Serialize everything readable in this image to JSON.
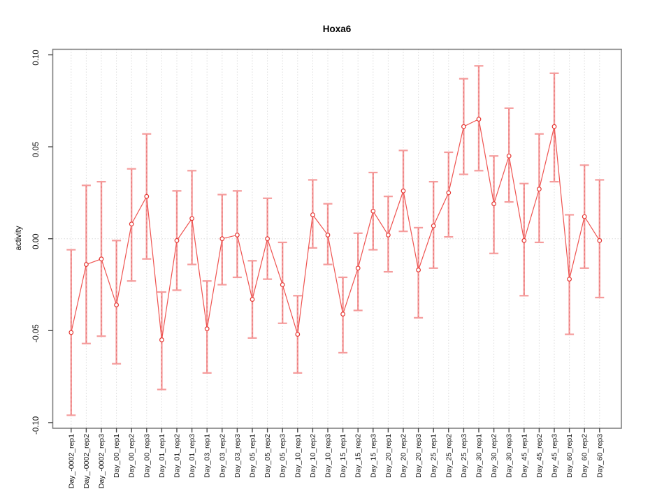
{
  "chart_data": {
    "type": "line",
    "title": "Hoxa6",
    "ylabel": "activity",
    "xlabel": "",
    "ylim": [
      -0.1,
      0.1
    ],
    "yticks": [
      0.1,
      0.05,
      0.0,
      -0.05,
      -0.1
    ],
    "ytick_labels": [
      "0.10",
      "0.05",
      "0.00",
      "-0.05",
      "-0.10"
    ],
    "grid": "vertical dotted line per category, dotted horizontal line at zero",
    "legend_position": "none",
    "marker": "open-circle",
    "categories": [
      "Day_-0002_rep1",
      "Day_-0002_rep2",
      "Day_-0002_rep3",
      "Day_00_rep1",
      "Day_00_rep2",
      "Day_00_rep3",
      "Day_01_rep1",
      "Day_01_rep2",
      "Day_01_rep3",
      "Day_03_rep1",
      "Day_03_rep2",
      "Day_03_rep3",
      "Day_05_rep1",
      "Day_05_rep2",
      "Day_05_rep3",
      "Day_10_rep1",
      "Day_10_rep2",
      "Day_10_rep3",
      "Day_15_rep1",
      "Day_15_rep2",
      "Day_15_rep3",
      "Day_20_rep1",
      "Day_20_rep2",
      "Day_20_rep3",
      "Day_25_rep1",
      "Day_25_rep2",
      "Day_25_rep3",
      "Day_30_rep1",
      "Day_30_rep2",
      "Day_30_rep3",
      "Day_45_rep1",
      "Day_45_rep2",
      "Day_45_rep3",
      "Day_60_rep1",
      "Day_60_rep2",
      "Day_60_rep3"
    ],
    "series": [
      {
        "name": "Hoxa6 activity",
        "values": [
          -0.051,
          -0.014,
          -0.011,
          -0.036,
          0.008,
          0.023,
          -0.055,
          -0.001,
          0.011,
          -0.049,
          0.0,
          0.002,
          -0.033,
          0.0,
          -0.025,
          -0.052,
          0.013,
          0.002,
          -0.041,
          -0.016,
          0.015,
          0.002,
          0.026,
          -0.017,
          0.007,
          0.025,
          0.061,
          0.065,
          0.019,
          0.045,
          -0.001,
          0.027,
          0.061,
          -0.022,
          0.012,
          -0.001
        ],
        "error_high": [
          -0.006,
          0.029,
          0.031,
          -0.001,
          0.038,
          0.057,
          -0.029,
          0.026,
          0.037,
          -0.023,
          0.024,
          0.026,
          -0.012,
          0.022,
          -0.002,
          -0.031,
          0.032,
          0.019,
          -0.021,
          0.003,
          0.036,
          0.023,
          0.048,
          0.006,
          0.031,
          0.047,
          0.087,
          0.094,
          0.045,
          0.071,
          0.03,
          0.057,
          0.09,
          0.013,
          0.04,
          0.032
        ],
        "error_low": [
          -0.096,
          -0.057,
          -0.053,
          -0.068,
          -0.023,
          -0.011,
          -0.082,
          -0.028,
          -0.014,
          -0.073,
          -0.025,
          -0.021,
          -0.054,
          -0.022,
          -0.046,
          -0.073,
          -0.005,
          -0.014,
          -0.062,
          -0.039,
          -0.006,
          -0.018,
          0.004,
          -0.043,
          -0.016,
          0.001,
          0.035,
          0.037,
          -0.008,
          0.02,
          -0.031,
          -0.002,
          0.031,
          -0.052,
          -0.016,
          -0.032
        ]
      }
    ],
    "colors": {
      "point": "#e53935",
      "line": "#ef5350",
      "error_bar": "#f59c9c",
      "error_bar_dash": "#e57373",
      "gridline": "#dcdcdc",
      "zero_line": "#dcdcdc",
      "axis_box": "#7a7a7a",
      "tick": "#444444",
      "text": "#111111"
    }
  }
}
